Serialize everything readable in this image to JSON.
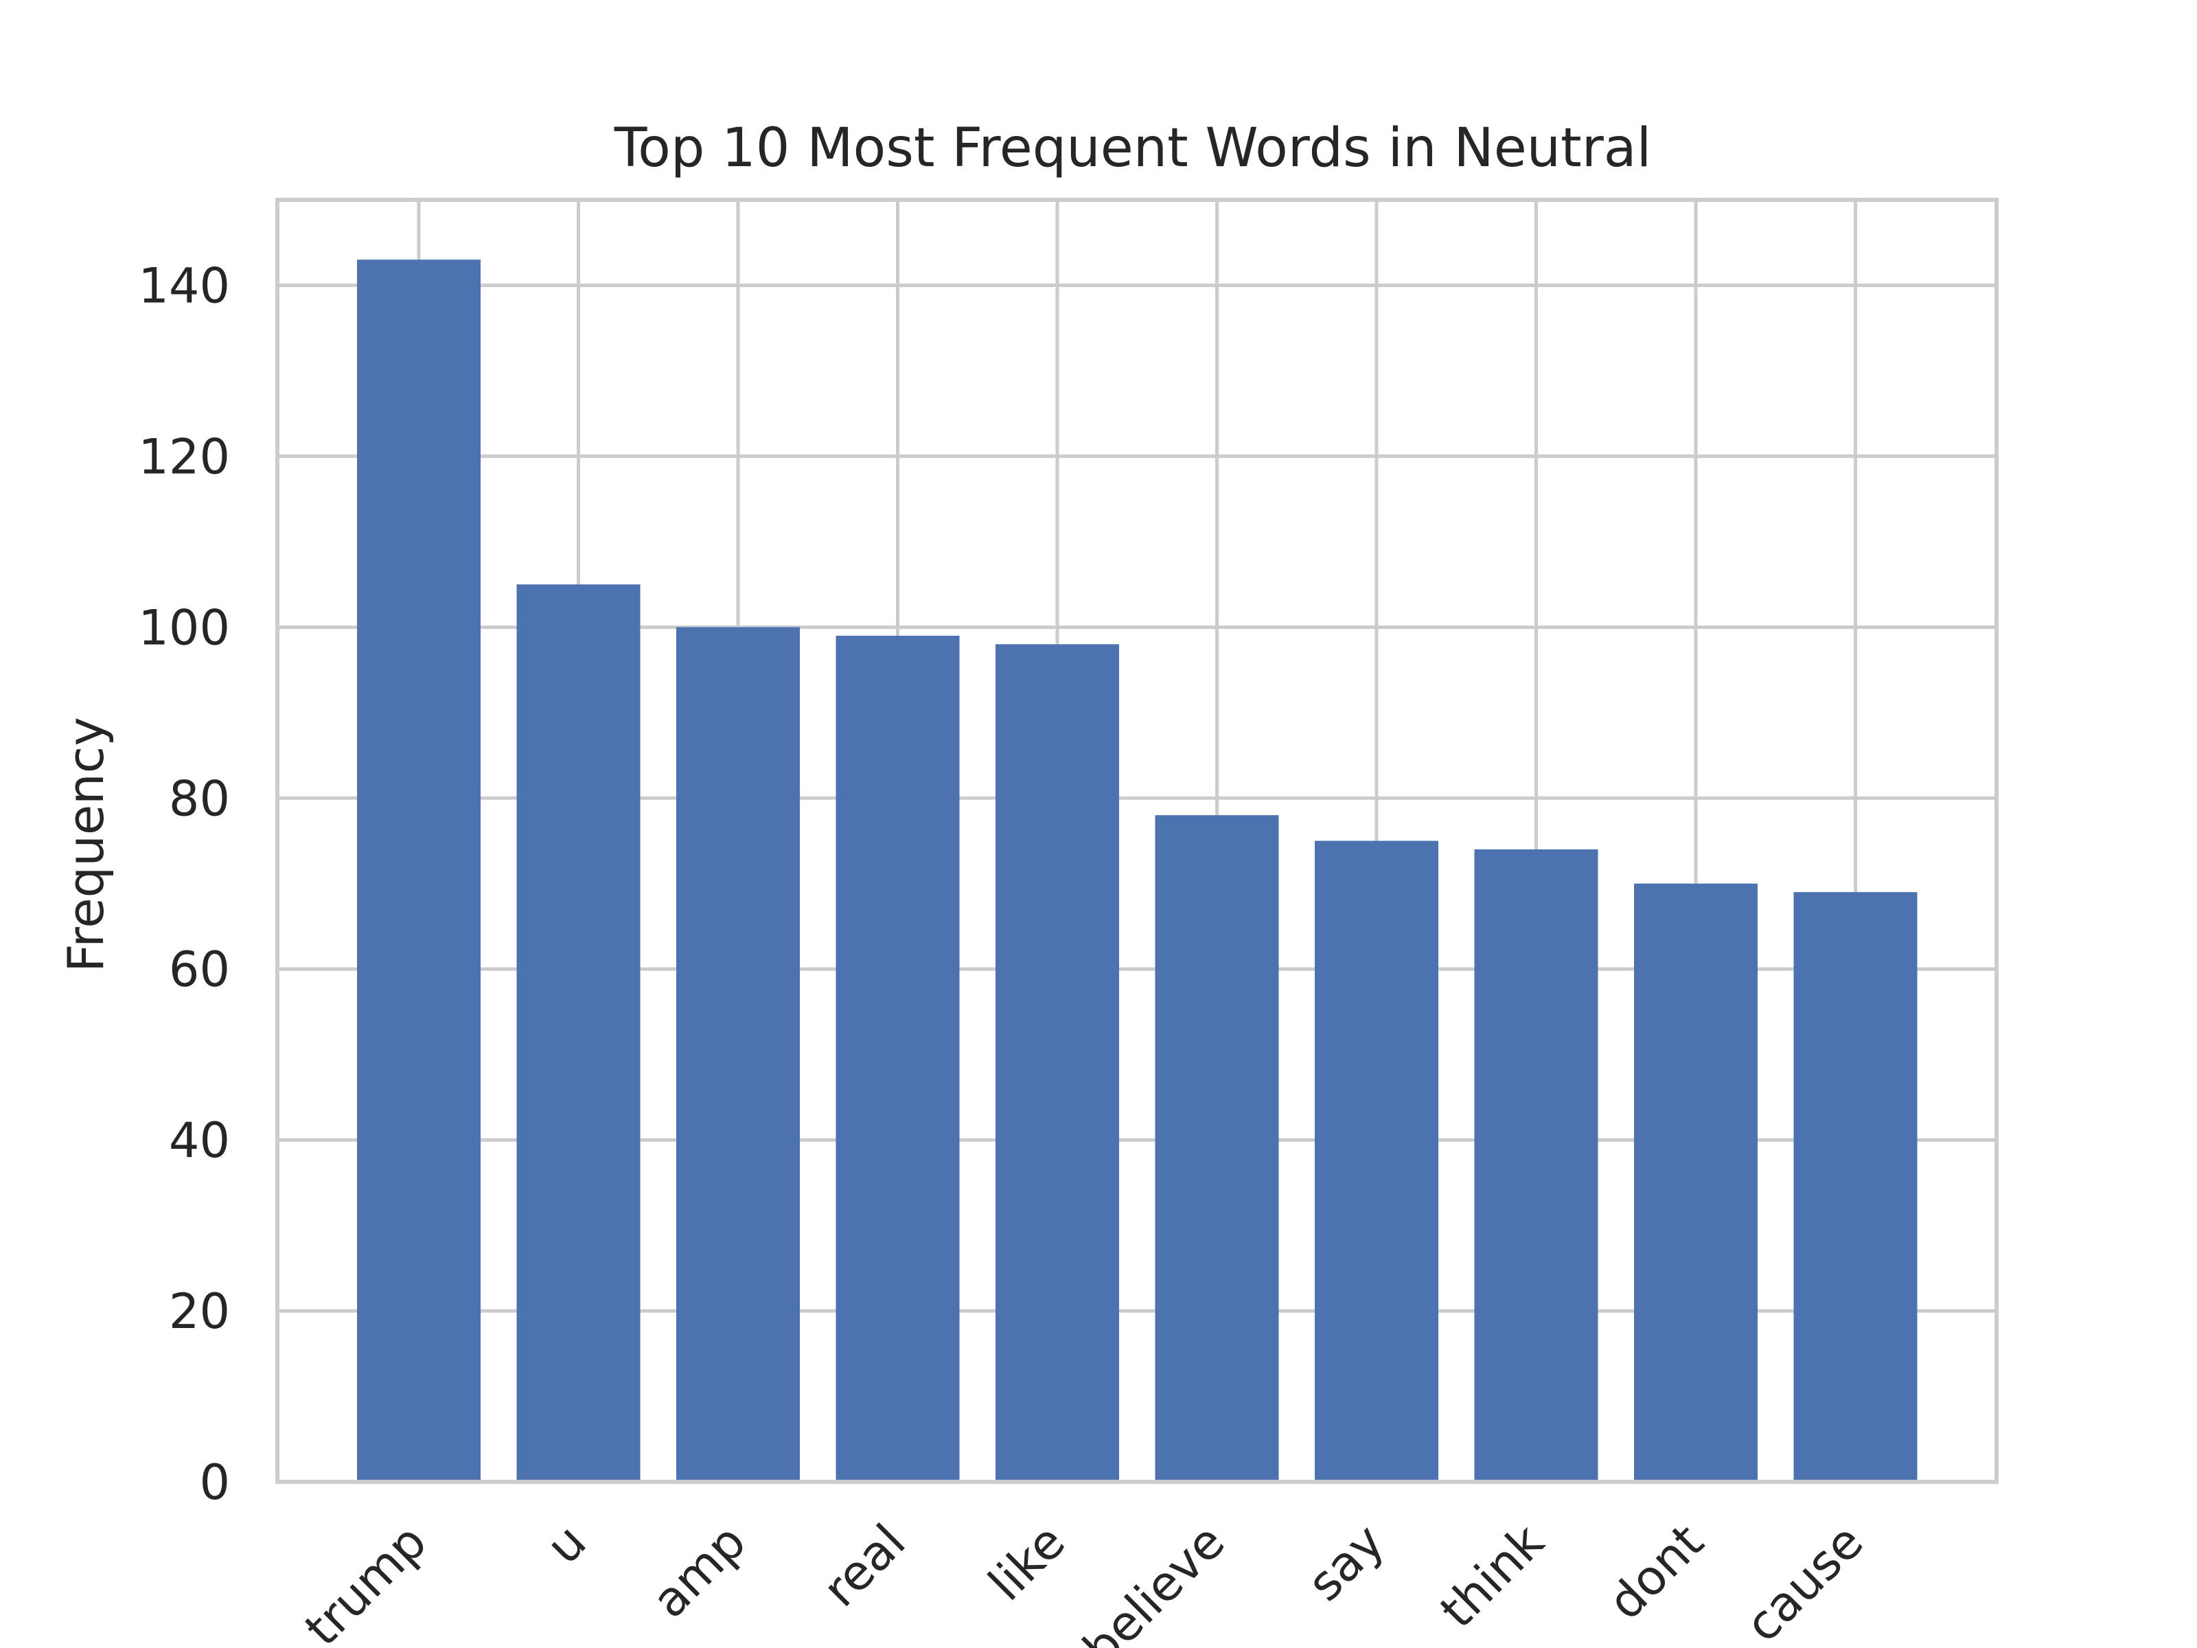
{
  "chart_data": {
    "type": "bar",
    "title": "Top 10 Most Frequent Words in Neutral",
    "xlabel": "",
    "ylabel": "Frequency",
    "categories": [
      "trump",
      "u",
      "amp",
      "real",
      "like",
      "believe",
      "say",
      "think",
      "dont",
      "cause"
    ],
    "values": [
      143,
      105,
      100,
      99,
      98,
      78,
      75,
      74,
      70,
      69
    ],
    "ylim": [
      0,
      150
    ],
    "yticks": [
      0,
      20,
      40,
      60,
      80,
      100,
      120,
      140
    ],
    "grid": true,
    "legend": "none",
    "bar_color": "#4c72b0",
    "grid_color": "#cccccc",
    "text_color": "#262626"
  }
}
